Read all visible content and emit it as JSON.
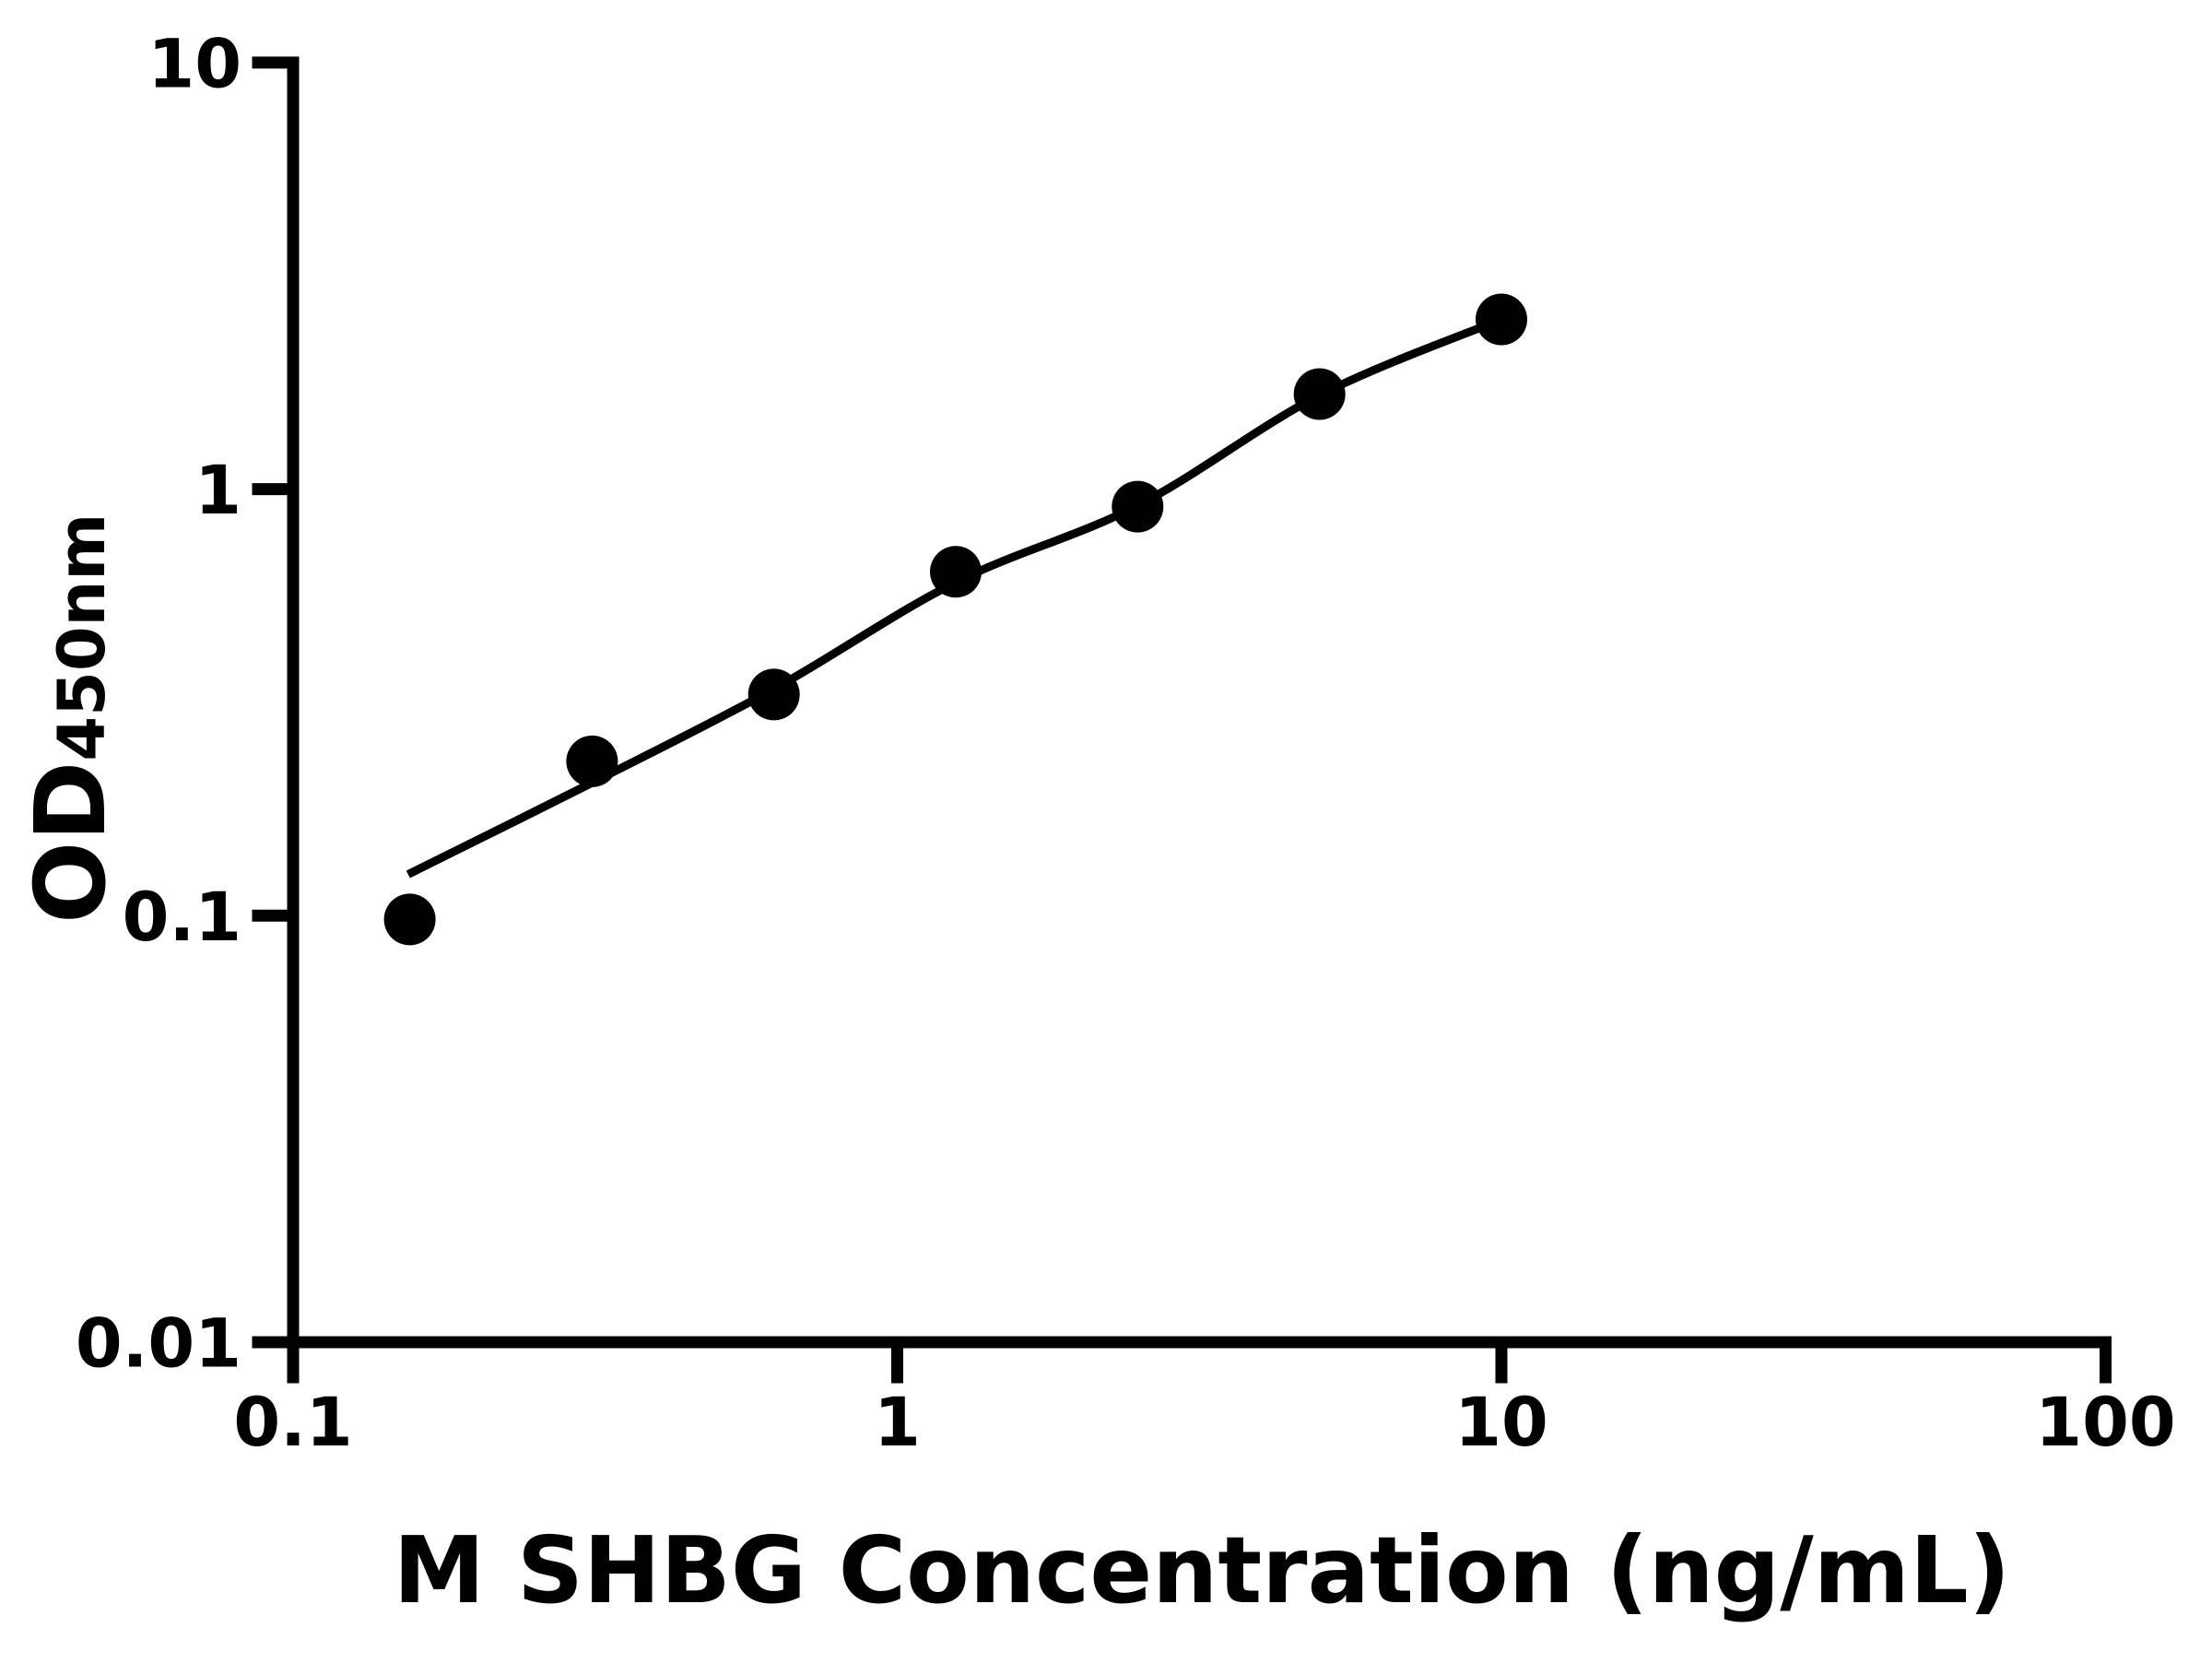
{
  "chart_data": {
    "type": "scatter",
    "xlabel": "M SHBG Concentration (ng/mL)",
    "ylabel_main": "OD",
    "ylabel_sub": "450nm",
    "x_scale": "log",
    "y_scale": "log",
    "xlim": [
      0.1,
      100
    ],
    "ylim": [
      0.01,
      10
    ],
    "x_ticks": [
      0.1,
      1,
      10,
      100
    ],
    "x_tick_labels": [
      "0.1",
      "1",
      "10",
      "100"
    ],
    "y_ticks": [
      0.01,
      0.1,
      1,
      10
    ],
    "y_tick_labels": [
      "0.01",
      "0.1",
      "1",
      "10"
    ],
    "grid": false,
    "legend": null,
    "marker_color": "#000000",
    "line_color": "#000000",
    "points": [
      [
        0.156,
        0.098
      ],
      [
        0.3125,
        0.23
      ],
      [
        0.625,
        0.33
      ],
      [
        1.25,
        0.64
      ],
      [
        2.5,
        0.91
      ],
      [
        5,
        1.67
      ],
      [
        10,
        2.5
      ]
    ],
    "fit_curve": [
      [
        0.155,
        0.125
      ],
      [
        0.3125,
        0.205
      ],
      [
        0.625,
        0.34
      ],
      [
        1.25,
        0.605
      ],
      [
        2.5,
        0.915
      ],
      [
        5,
        1.66
      ],
      [
        10,
        2.5
      ]
    ]
  }
}
